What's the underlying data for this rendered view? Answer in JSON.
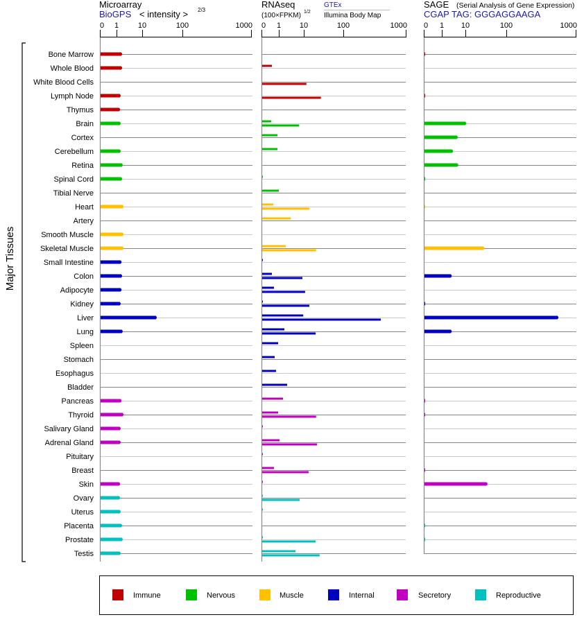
{
  "chart_data": {
    "type": "bar",
    "orientation": "horizontal",
    "ylabel": "Major Tissues",
    "panels": [
      {
        "id": "microarray",
        "title": "Microarray",
        "source": "BioGPS",
        "scale_label": "< intensity >",
        "scale_exp": "2/3",
        "ticks": [
          0,
          1,
          10,
          100,
          1000
        ]
      },
      {
        "id": "rnaseq",
        "title": "RNAseq",
        "scale_label": "(100×FPKM)",
        "scale_exp": "1/2",
        "sources": [
          "GTEx",
          "Illumina Body Map"
        ],
        "ticks": [
          0,
          1,
          10,
          100,
          1000
        ]
      },
      {
        "id": "sage",
        "title": "SAGE",
        "subtitle": "(Serial Analysis of Gene Expression)",
        "source": "CGAP TAG: GGGAGGAAGA",
        "ticks": [
          0,
          1,
          10,
          100,
          1000
        ]
      }
    ],
    "categories": {
      "immune": {
        "label": "Immune",
        "color": "#c00000"
      },
      "nervous": {
        "label": "Nervous",
        "color": "#00c000"
      },
      "muscle": {
        "label": "Muscle",
        "color": "#ffc000"
      },
      "internal": {
        "label": "Internal",
        "color": "#0000c0"
      },
      "secretory": {
        "label": "Secretory",
        "color": "#c000c0"
      },
      "reproductive": {
        "label": "Reproductive",
        "color": "#00c0c0"
      }
    },
    "legend_order": [
      "immune",
      "nervous",
      "muscle",
      "internal",
      "secretory",
      "reproductive"
    ],
    "tissues": [
      {
        "name": "Bone Marrow",
        "cat": "immune",
        "microarray": 2.7,
        "gtex": null,
        "illumina": null,
        "sage": 0.05
      },
      {
        "name": "Whole Blood",
        "cat": "immune",
        "microarray": 2.7,
        "gtex": 0.6,
        "illumina": null,
        "sage": null
      },
      {
        "name": "White Blood Cells",
        "cat": "immune",
        "microarray": null,
        "gtex": null,
        "illumina": 16,
        "sage": null
      },
      {
        "name": "Lymph Node",
        "cat": "immune",
        "microarray": 2.2,
        "gtex": null,
        "illumina": 49,
        "sage": 0.05
      },
      {
        "name": "Thymus",
        "cat": "immune",
        "microarray": 2.0,
        "gtex": null,
        "illumina": null,
        "sage": null
      },
      {
        "name": "Brain",
        "cat": "nervous",
        "microarray": 2.2,
        "gtex": 0.56,
        "illumina": 8.3,
        "sage": 10.3
      },
      {
        "name": "Cortex",
        "cat": "nervous",
        "microarray": null,
        "gtex": 0.92,
        "illumina": null,
        "sage": 6.8
      },
      {
        "name": "Cerebellum",
        "cat": "nervous",
        "microarray": 2.2,
        "gtex": 0.92,
        "illumina": null,
        "sage": 5
      },
      {
        "name": "Retina",
        "cat": "nervous",
        "microarray": 2.9,
        "gtex": null,
        "illumina": null,
        "sage": 7
      },
      {
        "name": "Spinal Cord",
        "cat": "nervous",
        "microarray": 2.7,
        "gtex": 0.05,
        "illumina": null,
        "sage": 0.05
      },
      {
        "name": "Tibial Nerve",
        "cat": "nervous",
        "microarray": null,
        "gtex": 1.0,
        "illumina": null,
        "sage": null
      },
      {
        "name": "Heart",
        "cat": "muscle",
        "microarray": 3.2,
        "gtex": 0.68,
        "illumina": 22.6,
        "sage": 0.05
      },
      {
        "name": "Artery",
        "cat": "muscle",
        "microarray": null,
        "gtex": 5.3,
        "illumina": null,
        "sage": null
      },
      {
        "name": "Smooth Muscle",
        "cat": "muscle",
        "microarray": 3.2,
        "gtex": null,
        "illumina": null,
        "sage": null
      },
      {
        "name": "Skeletal Muscle",
        "cat": "muscle",
        "microarray": 3.2,
        "gtex": 3.5,
        "illumina": 38,
        "sage": 50
      },
      {
        "name": "Small Intestine",
        "cat": "internal",
        "microarray": 2.5,
        "gtex": 0.05,
        "illumina": null,
        "sage": null
      },
      {
        "name": "Colon",
        "cat": "internal",
        "microarray": 2.7,
        "gtex": 0.6,
        "illumina": 9.5,
        "sage": 4.5
      },
      {
        "name": "Adipocyte",
        "cat": "internal",
        "microarray": 2.5,
        "gtex": 0.72,
        "illumina": 13,
        "sage": null
      },
      {
        "name": "Kidney",
        "cat": "internal",
        "microarray": 2.2,
        "gtex": 0.05,
        "illumina": 22.6,
        "sage": 0.05
      },
      {
        "name": "Liver",
        "cat": "internal",
        "microarray": 41,
        "gtex": 9.8,
        "illumina": 640,
        "sage": 766
      },
      {
        "name": "Lung",
        "cat": "internal",
        "microarray": 2.9,
        "gtex": 3,
        "illumina": 37,
        "sage": 4.5
      },
      {
        "name": "Spleen",
        "cat": "internal",
        "microarray": null,
        "gtex": 0.96,
        "illumina": null,
        "sage": null
      },
      {
        "name": "Stomach",
        "cat": "internal",
        "microarray": null,
        "gtex": 0.76,
        "illumina": null,
        "sage": null
      },
      {
        "name": "Esophagus",
        "cat": "internal",
        "microarray": null,
        "gtex": 0.84,
        "illumina": null,
        "sage": null
      },
      {
        "name": "Bladder",
        "cat": "internal",
        "microarray": null,
        "gtex": 4,
        "illumina": null,
        "sage": null
      },
      {
        "name": "Pancreas",
        "cat": "secretory",
        "microarray": 2.5,
        "gtex": 2.5,
        "illumina": null,
        "sage": 0.05
      },
      {
        "name": "Thyroid",
        "cat": "secretory",
        "microarray": 3.2,
        "gtex": 0.96,
        "illumina": 38,
        "sage": 0.05
      },
      {
        "name": "Salivary Gland",
        "cat": "secretory",
        "microarray": 2.2,
        "gtex": 0.05,
        "illumina": null,
        "sage": null
      },
      {
        "name": "Adrenal Gland",
        "cat": "secretory",
        "microarray": 2.2,
        "gtex": 1.25,
        "illumina": 40,
        "sage": null
      },
      {
        "name": "Pituitary",
        "cat": "secretory",
        "microarray": null,
        "gtex": 0.05,
        "illumina": null,
        "sage": null
      },
      {
        "name": "Breast",
        "cat": "secretory",
        "microarray": null,
        "gtex": 0.72,
        "illumina": 21,
        "sage": 0.05
      },
      {
        "name": "Skin",
        "cat": "secretory",
        "microarray": 2.0,
        "gtex": 0.05,
        "illumina": null,
        "sage": 57
      },
      {
        "name": "Ovary",
        "cat": "reproductive",
        "microarray": 2.0,
        "gtex": 0.05,
        "illumina": 8.5,
        "sage": null
      },
      {
        "name": "Uterus",
        "cat": "reproductive",
        "microarray": 2.2,
        "gtex": 0.05,
        "illumina": null,
        "sage": null
      },
      {
        "name": "Placenta",
        "cat": "reproductive",
        "microarray": 2.7,
        "gtex": null,
        "illumina": null,
        "sage": 0.05
      },
      {
        "name": "Prostate",
        "cat": "reproductive",
        "microarray": 2.9,
        "gtex": 0.05,
        "illumina": 37,
        "sage": 0.05
      },
      {
        "name": "Testis",
        "cat": "reproductive",
        "microarray": 2.2,
        "gtex": 7,
        "illumina": 46,
        "sage": null
      }
    ]
  }
}
